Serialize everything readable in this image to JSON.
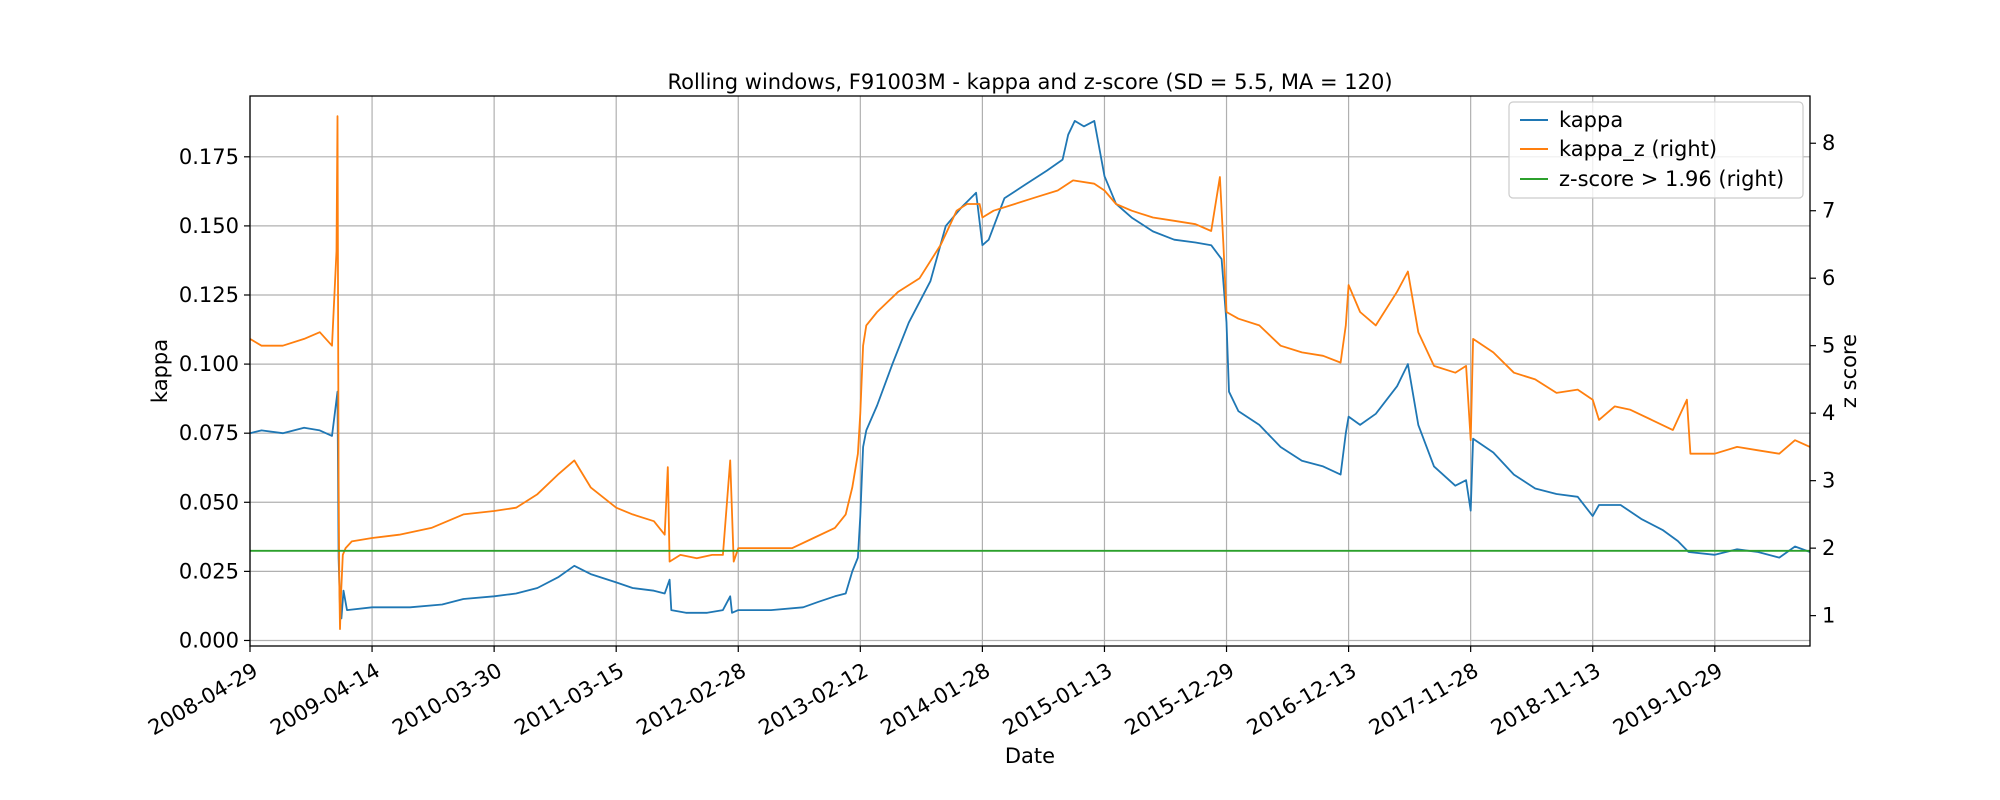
{
  "chart_data": {
    "type": "line",
    "title": "Rolling windows, F91003M - kappa and z-score (SD = 5.5, MA = 120)",
    "xlabel": "Date",
    "ylabel": "kappa",
    "ylabel_right": "z score",
    "grid": true,
    "legend_position": "top-right",
    "x_ticks": [
      "2008-04-29",
      "2009-04-14",
      "2010-03-30",
      "2011-03-15",
      "2012-02-28",
      "2013-02-12",
      "2014-01-28",
      "2015-01-13",
      "2015-12-29",
      "2016-12-13",
      "2017-11-28",
      "2018-11-13",
      "2019-10-29"
    ],
    "x_range": [
      "2008-04-29",
      "2020-07-28"
    ],
    "y_left_ticks": [
      "0.000",
      "0.025",
      "0.050",
      "0.075",
      "0.100",
      "0.125",
      "0.150",
      "0.175"
    ],
    "y_left_range": [
      -0.002,
      0.197
    ],
    "y_right_ticks": [
      "1",
      "2",
      "3",
      "4",
      "5",
      "6",
      "7",
      "8"
    ],
    "y_right_range": [
      0.55,
      8.7
    ],
    "series": [
      {
        "name": "kappa",
        "axis": "left",
        "color": "#1f77b4",
        "points": [
          [
            "2008-04-29",
            0.075
          ],
          [
            "2008-06-01",
            0.076
          ],
          [
            "2008-08-01",
            0.075
          ],
          [
            "2008-10-01",
            0.077
          ],
          [
            "2008-11-15",
            0.076
          ],
          [
            "2008-12-20",
            0.074
          ],
          [
            "2009-01-05",
            0.09
          ],
          [
            "2009-01-08",
            0.03
          ],
          [
            "2009-01-12",
            0.012
          ],
          [
            "2009-01-16",
            0.008
          ],
          [
            "2009-01-22",
            0.018
          ],
          [
            "2009-02-01",
            0.011
          ],
          [
            "2009-04-14",
            0.012
          ],
          [
            "2009-08-01",
            0.012
          ],
          [
            "2009-11-01",
            0.013
          ],
          [
            "2010-01-01",
            0.015
          ],
          [
            "2010-03-30",
            0.016
          ],
          [
            "2010-06-01",
            0.017
          ],
          [
            "2010-08-01",
            0.019
          ],
          [
            "2010-10-01",
            0.023
          ],
          [
            "2010-11-15",
            0.027
          ],
          [
            "2011-01-01",
            0.024
          ],
          [
            "2011-03-15",
            0.021
          ],
          [
            "2011-05-01",
            0.019
          ],
          [
            "2011-07-01",
            0.018
          ],
          [
            "2011-08-01",
            0.017
          ],
          [
            "2011-08-15",
            0.022
          ],
          [
            "2011-08-20",
            0.011
          ],
          [
            "2011-10-01",
            0.01
          ],
          [
            "2011-12-01",
            0.01
          ],
          [
            "2012-01-15",
            0.011
          ],
          [
            "2012-02-05",
            0.016
          ],
          [
            "2012-02-10",
            0.01
          ],
          [
            "2012-02-28",
            0.011
          ],
          [
            "2012-06-01",
            0.011
          ],
          [
            "2012-09-01",
            0.012
          ],
          [
            "2012-10-15",
            0.014
          ],
          [
            "2012-12-01",
            0.016
          ],
          [
            "2013-01-01",
            0.017
          ],
          [
            "2013-01-20",
            0.025
          ],
          [
            "2013-02-05",
            0.03
          ],
          [
            "2013-02-12",
            0.045
          ],
          [
            "2013-02-20",
            0.07
          ],
          [
            "2013-03-01",
            0.076
          ],
          [
            "2013-04-01",
            0.085
          ],
          [
            "2013-05-15",
            0.1
          ],
          [
            "2013-07-01",
            0.115
          ],
          [
            "2013-09-01",
            0.13
          ],
          [
            "2013-10-15",
            0.15
          ],
          [
            "2013-12-01",
            0.157
          ],
          [
            "2014-01-10",
            0.162
          ],
          [
            "2014-01-28",
            0.143
          ],
          [
            "2014-02-15",
            0.145
          ],
          [
            "2014-04-01",
            0.16
          ],
          [
            "2014-06-01",
            0.165
          ],
          [
            "2014-08-01",
            0.17
          ],
          [
            "2014-09-15",
            0.174
          ],
          [
            "2014-10-01",
            0.183
          ],
          [
            "2014-10-20",
            0.188
          ],
          [
            "2014-11-15",
            0.186
          ],
          [
            "2014-12-15",
            0.188
          ],
          [
            "2015-01-13",
            0.168
          ],
          [
            "2015-02-15",
            0.158
          ],
          [
            "2015-04-01",
            0.153
          ],
          [
            "2015-06-01",
            0.148
          ],
          [
            "2015-08-01",
            0.145
          ],
          [
            "2015-10-01",
            0.144
          ],
          [
            "2015-11-15",
            0.143
          ],
          [
            "2015-12-15",
            0.138
          ],
          [
            "2015-12-29",
            0.115
          ],
          [
            "2016-01-05",
            0.09
          ],
          [
            "2016-02-01",
            0.083
          ],
          [
            "2016-04-01",
            0.078
          ],
          [
            "2016-06-01",
            0.07
          ],
          [
            "2016-08-01",
            0.065
          ],
          [
            "2016-10-01",
            0.063
          ],
          [
            "2016-11-20",
            0.06
          ],
          [
            "2016-12-05",
            0.075
          ],
          [
            "2016-12-13",
            0.081
          ],
          [
            "2017-01-15",
            0.078
          ],
          [
            "2017-03-01",
            0.082
          ],
          [
            "2017-05-01",
            0.092
          ],
          [
            "2017-06-01",
            0.1
          ],
          [
            "2017-07-01",
            0.078
          ],
          [
            "2017-08-15",
            0.063
          ],
          [
            "2017-10-15",
            0.056
          ],
          [
            "2017-11-15",
            0.058
          ],
          [
            "2017-11-28",
            0.047
          ],
          [
            "2017-12-05",
            0.073
          ],
          [
            "2018-02-01",
            0.068
          ],
          [
            "2018-04-01",
            0.06
          ],
          [
            "2018-06-01",
            0.055
          ],
          [
            "2018-08-01",
            0.053
          ],
          [
            "2018-10-01",
            0.052
          ],
          [
            "2018-11-13",
            0.045
          ],
          [
            "2018-12-01",
            0.049
          ],
          [
            "2019-02-01",
            0.049
          ],
          [
            "2019-04-01",
            0.044
          ],
          [
            "2019-06-01",
            0.04
          ],
          [
            "2019-07-15",
            0.036
          ],
          [
            "2019-08-15",
            0.032
          ],
          [
            "2019-10-29",
            0.031
          ],
          [
            "2020-01-01",
            0.033
          ],
          [
            "2020-03-01",
            0.032
          ],
          [
            "2020-05-01",
            0.03
          ],
          [
            "2020-06-15",
            0.034
          ],
          [
            "2020-07-28",
            0.032
          ]
        ]
      },
      {
        "name": "kappa_z (right)",
        "axis": "right",
        "color": "#ff7f0e",
        "points": [
          [
            "2008-04-29",
            5.1
          ],
          [
            "2008-06-01",
            5.0
          ],
          [
            "2008-08-01",
            5.0
          ],
          [
            "2008-10-01",
            5.1
          ],
          [
            "2008-11-15",
            5.2
          ],
          [
            "2008-12-20",
            5.0
          ],
          [
            "2009-01-02",
            6.4
          ],
          [
            "2009-01-05",
            8.4
          ],
          [
            "2009-01-08",
            3.0
          ],
          [
            "2009-01-10",
            1.5
          ],
          [
            "2009-01-12",
            0.8
          ],
          [
            "2009-01-15",
            1.3
          ],
          [
            "2009-01-20",
            1.9
          ],
          [
            "2009-01-28",
            2.0
          ],
          [
            "2009-02-15",
            2.1
          ],
          [
            "2009-04-14",
            2.15
          ],
          [
            "2009-07-01",
            2.2
          ],
          [
            "2009-10-01",
            2.3
          ],
          [
            "2010-01-01",
            2.5
          ],
          [
            "2010-03-30",
            2.55
          ],
          [
            "2010-06-01",
            2.6
          ],
          [
            "2010-08-01",
            2.8
          ],
          [
            "2010-10-01",
            3.1
          ],
          [
            "2010-11-15",
            3.3
          ],
          [
            "2011-01-01",
            2.9
          ],
          [
            "2011-03-15",
            2.6
          ],
          [
            "2011-05-01",
            2.5
          ],
          [
            "2011-07-01",
            2.4
          ],
          [
            "2011-08-01",
            2.2
          ],
          [
            "2011-08-10",
            3.2
          ],
          [
            "2011-08-15",
            1.8
          ],
          [
            "2011-09-15",
            1.9
          ],
          [
            "2011-11-01",
            1.85
          ],
          [
            "2011-12-15",
            1.9
          ],
          [
            "2012-01-15",
            1.9
          ],
          [
            "2012-02-05",
            3.3
          ],
          [
            "2012-02-15",
            1.8
          ],
          [
            "2012-02-28",
            2.0
          ],
          [
            "2012-05-01",
            2.0
          ],
          [
            "2012-08-01",
            2.0
          ],
          [
            "2012-10-01",
            2.15
          ],
          [
            "2012-12-01",
            2.3
          ],
          [
            "2013-01-01",
            2.5
          ],
          [
            "2013-01-20",
            2.9
          ],
          [
            "2013-02-05",
            3.4
          ],
          [
            "2013-02-12",
            4.0
          ],
          [
            "2013-02-20",
            5.0
          ],
          [
            "2013-03-01",
            5.3
          ],
          [
            "2013-04-01",
            5.5
          ],
          [
            "2013-06-01",
            5.8
          ],
          [
            "2013-08-01",
            6.0
          ],
          [
            "2013-10-01",
            6.5
          ],
          [
            "2013-11-15",
            7.0
          ],
          [
            "2013-12-15",
            7.1
          ],
          [
            "2014-01-20",
            7.1
          ],
          [
            "2014-01-28",
            6.9
          ],
          [
            "2014-03-01",
            7.0
          ],
          [
            "2014-05-01",
            7.1
          ],
          [
            "2014-07-01",
            7.2
          ],
          [
            "2014-09-01",
            7.3
          ],
          [
            "2014-10-15",
            7.45
          ],
          [
            "2014-12-15",
            7.4
          ],
          [
            "2015-01-13",
            7.3
          ],
          [
            "2015-02-15",
            7.1
          ],
          [
            "2015-04-01",
            7.0
          ],
          [
            "2015-06-01",
            6.9
          ],
          [
            "2015-08-01",
            6.85
          ],
          [
            "2015-10-01",
            6.8
          ],
          [
            "2015-11-15",
            6.7
          ],
          [
            "2015-12-10",
            7.5
          ],
          [
            "2015-12-20",
            6.5
          ],
          [
            "2015-12-29",
            5.5
          ],
          [
            "2016-02-01",
            5.4
          ],
          [
            "2016-04-01",
            5.3
          ],
          [
            "2016-06-01",
            5.0
          ],
          [
            "2016-08-01",
            4.9
          ],
          [
            "2016-10-01",
            4.85
          ],
          [
            "2016-11-20",
            4.75
          ],
          [
            "2016-12-05",
            5.3
          ],
          [
            "2016-12-13",
            5.9
          ],
          [
            "2017-01-15",
            5.5
          ],
          [
            "2017-03-01",
            5.3
          ],
          [
            "2017-05-01",
            5.8
          ],
          [
            "2017-06-01",
            6.1
          ],
          [
            "2017-07-01",
            5.2
          ],
          [
            "2017-08-15",
            4.7
          ],
          [
            "2017-10-15",
            4.6
          ],
          [
            "2017-11-15",
            4.7
          ],
          [
            "2017-11-28",
            3.6
          ],
          [
            "2017-12-05",
            5.1
          ],
          [
            "2018-02-01",
            4.9
          ],
          [
            "2018-04-01",
            4.6
          ],
          [
            "2018-06-01",
            4.5
          ],
          [
            "2018-08-01",
            4.3
          ],
          [
            "2018-10-01",
            4.35
          ],
          [
            "2018-11-13",
            4.2
          ],
          [
            "2018-12-01",
            3.9
          ],
          [
            "2019-01-15",
            4.1
          ],
          [
            "2019-03-01",
            4.05
          ],
          [
            "2019-05-01",
            3.9
          ],
          [
            "2019-07-01",
            3.75
          ],
          [
            "2019-08-10",
            4.2
          ],
          [
            "2019-08-20",
            3.4
          ],
          [
            "2019-10-29",
            3.4
          ],
          [
            "2020-01-01",
            3.5
          ],
          [
            "2020-03-01",
            3.45
          ],
          [
            "2020-05-01",
            3.4
          ],
          [
            "2020-06-15",
            3.6
          ],
          [
            "2020-07-28",
            3.5
          ]
        ]
      },
      {
        "name": "z-score > 1.96 (right)",
        "axis": "right",
        "color": "#2ca02c",
        "points": [
          [
            "2008-04-29",
            1.96
          ],
          [
            "2020-07-28",
            1.96
          ]
        ]
      }
    ]
  }
}
